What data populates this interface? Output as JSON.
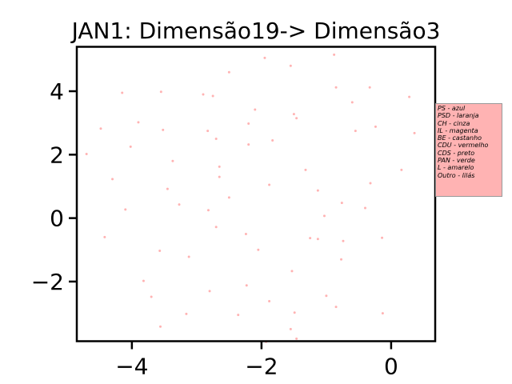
{
  "chart_data": {
    "type": "scatter",
    "title": "JAN1: Dimensão19-> Dimensão3",
    "xlabel": "",
    "ylabel": "",
    "xlim": [
      -4.85,
      0.68
    ],
    "ylim": [
      -3.88,
      5.4
    ],
    "xticks": [
      -4,
      -2,
      0
    ],
    "xtick_labels": [
      "−4",
      "−2",
      "0"
    ],
    "yticks": [
      -2,
      0,
      2,
      4
    ],
    "ytick_labels": [
      "−2",
      "0",
      "2",
      "4"
    ],
    "grid": false,
    "point_color": "#ffb3b3",
    "legend": {
      "placement": "right, outside axes",
      "background": "#ffb3b3",
      "entries": [
        "PS - azul",
        "PSD - laranja",
        "CH - cinza",
        "IL - magenta",
        "BE - castanho",
        "CDU - vermelho",
        "CDS - preto",
        "PAN - verde",
        "L - amarelo",
        "Outro - lilás"
      ]
    },
    "series": [
      {
        "points": [
          [
            -1.95,
            5.05
          ],
          [
            -0.88,
            5.15
          ],
          [
            -1.55,
            4.8
          ],
          [
            -2.5,
            4.6
          ],
          [
            -4.15,
            3.95
          ],
          [
            -3.55,
            3.98
          ],
          [
            -2.9,
            3.9
          ],
          [
            -2.75,
            3.85
          ],
          [
            -0.85,
            4.12
          ],
          [
            -0.33,
            4.12
          ],
          [
            0.28,
            3.82
          ],
          [
            -0.6,
            3.65
          ],
          [
            -2.1,
            3.42
          ],
          [
            -1.5,
            3.28
          ],
          [
            -1.46,
            3.15
          ],
          [
            -3.9,
            3.02
          ],
          [
            -2.2,
            2.98
          ],
          [
            -4.48,
            2.82
          ],
          [
            -3.52,
            2.78
          ],
          [
            -2.83,
            2.75
          ],
          [
            -0.55,
            2.75
          ],
          [
            -0.24,
            2.88
          ],
          [
            0.36,
            2.68
          ],
          [
            -2.7,
            2.5
          ],
          [
            -1.83,
            2.45
          ],
          [
            -2.2,
            2.32
          ],
          [
            -4.02,
            2.25
          ],
          [
            -4.7,
            2.02
          ],
          [
            -3.37,
            1.8
          ],
          [
            -2.65,
            1.62
          ],
          [
            -1.32,
            1.52
          ],
          [
            0.16,
            1.52
          ],
          [
            -2.65,
            1.3
          ],
          [
            -4.3,
            1.23
          ],
          [
            -0.32,
            1.1
          ],
          [
            -1.88,
            1.05
          ],
          [
            -3.45,
            0.92
          ],
          [
            -1.13,
            0.87
          ],
          [
            -2.5,
            0.65
          ],
          [
            -0.76,
            0.48
          ],
          [
            -3.27,
            0.43
          ],
          [
            -0.4,
            0.32
          ],
          [
            -4.1,
            0.27
          ],
          [
            -2.82,
            0.25
          ],
          [
            -1.03,
            0.07
          ],
          [
            -2.7,
            -0.28
          ],
          [
            -2.24,
            -0.5
          ],
          [
            -4.42,
            -0.6
          ],
          [
            -1.25,
            -0.63
          ],
          [
            -1.13,
            -0.66
          ],
          [
            -0.74,
            -0.72
          ],
          [
            -0.14,
            -0.62
          ],
          [
            -2.05,
            -1.0
          ],
          [
            -3.57,
            -1.03
          ],
          [
            -3.12,
            -1.22
          ],
          [
            -0.77,
            -1.3
          ],
          [
            -1.53,
            -1.67
          ],
          [
            -3.82,
            -1.98
          ],
          [
            -2.23,
            -2.12
          ],
          [
            -2.8,
            -2.3
          ],
          [
            -3.7,
            -2.48
          ],
          [
            -1.0,
            -2.45
          ],
          [
            -1.88,
            -2.62
          ],
          [
            -0.85,
            -2.8
          ],
          [
            -3.16,
            -3.02
          ],
          [
            -2.36,
            -3.05
          ],
          [
            -1.49,
            -2.98
          ],
          [
            -0.13,
            -3.0
          ],
          [
            -3.56,
            -3.42
          ],
          [
            -1.55,
            -3.5
          ],
          [
            -1.46,
            -3.8
          ],
          [
            -1.93,
            -3.9
          ]
        ]
      }
    ]
  }
}
